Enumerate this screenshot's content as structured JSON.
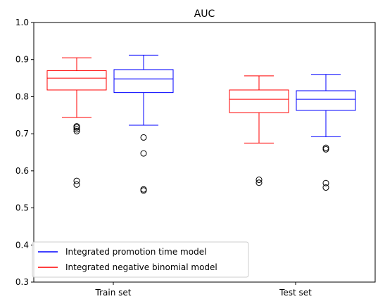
{
  "chart_data": {
    "type": "box",
    "title": "AUC",
    "xlabel": "",
    "ylabel": "",
    "categories": [
      "Train set",
      "Test set"
    ],
    "ylim": [
      0.3,
      1.0
    ],
    "yticks": [
      "0.3",
      "0.4",
      "0.5",
      "0.6",
      "0.7",
      "0.8",
      "0.9",
      "1.0"
    ],
    "ytick_values": [
      0.3,
      0.4,
      0.5,
      0.6,
      0.7,
      0.8,
      0.9,
      1.0
    ],
    "grid": false,
    "legend": {
      "position": "lower-left",
      "entries": [
        {
          "label": "Integrated promotion time model",
          "color": "#0000ff"
        },
        {
          "label": "Integrated negative binomial model",
          "color": "#ff0000"
        }
      ]
    },
    "series": [
      {
        "name": "Integrated negative binomial model",
        "color": "#ff0000",
        "boxes": [
          {
            "category": "Train set",
            "whisker_low": 0.744,
            "q1": 0.818,
            "median": 0.85,
            "q3": 0.87,
            "whisker_high": 0.905,
            "outliers": [
              0.72,
              0.717,
              0.712,
              0.707,
              0.573,
              0.563
            ]
          },
          {
            "category": "Test set",
            "whisker_low": 0.675,
            "q1": 0.757,
            "median": 0.793,
            "q3": 0.818,
            "whisker_high": 0.856,
            "outliers": [
              0.576,
              0.568
            ]
          }
        ]
      },
      {
        "name": "Integrated promotion time model",
        "color": "#0000ff",
        "boxes": [
          {
            "category": "Train set",
            "whisker_low": 0.723,
            "q1": 0.811,
            "median": 0.848,
            "q3": 0.873,
            "whisker_high": 0.912,
            "outliers": [
              0.69,
              0.647,
              0.55,
              0.547
            ]
          },
          {
            "category": "Test set",
            "whisker_low": 0.692,
            "q1": 0.763,
            "median": 0.793,
            "q3": 0.816,
            "whisker_high": 0.86,
            "outliers": [
              0.662,
              0.658,
              0.567,
              0.555
            ]
          }
        ]
      }
    ]
  }
}
